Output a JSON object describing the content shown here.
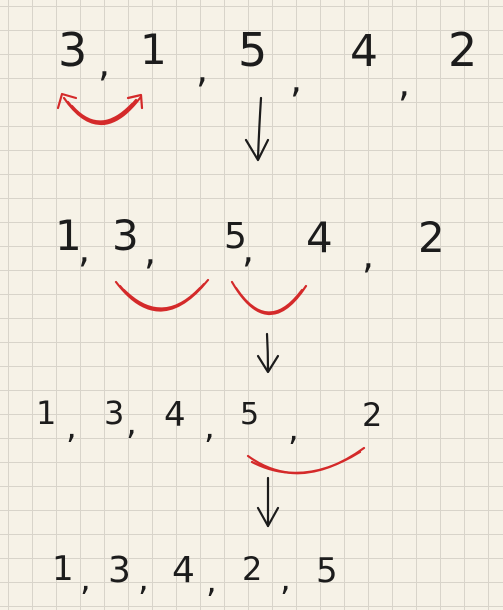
{
  "steps": [
    {
      "tokens": [
        "3",
        ",",
        "1",
        ",",
        "5",
        ",",
        "4",
        ",",
        "2"
      ]
    },
    {
      "tokens": [
        "1",
        ",",
        "3",
        ",",
        "5",
        ",",
        "4",
        ",",
        "2"
      ]
    },
    {
      "tokens": [
        "1",
        ",",
        "3",
        ",",
        "4",
        ",",
        "5",
        ",",
        "2"
      ]
    },
    {
      "tokens": [
        "1",
        ",",
        "3",
        ",",
        "4",
        ",",
        "2",
        ",",
        "5"
      ]
    }
  ],
  "colors": {
    "ink": "#1c1c1c",
    "marker": "#d42a2a",
    "paper": "#f6f2e7",
    "grid": "#d8d4ca"
  }
}
